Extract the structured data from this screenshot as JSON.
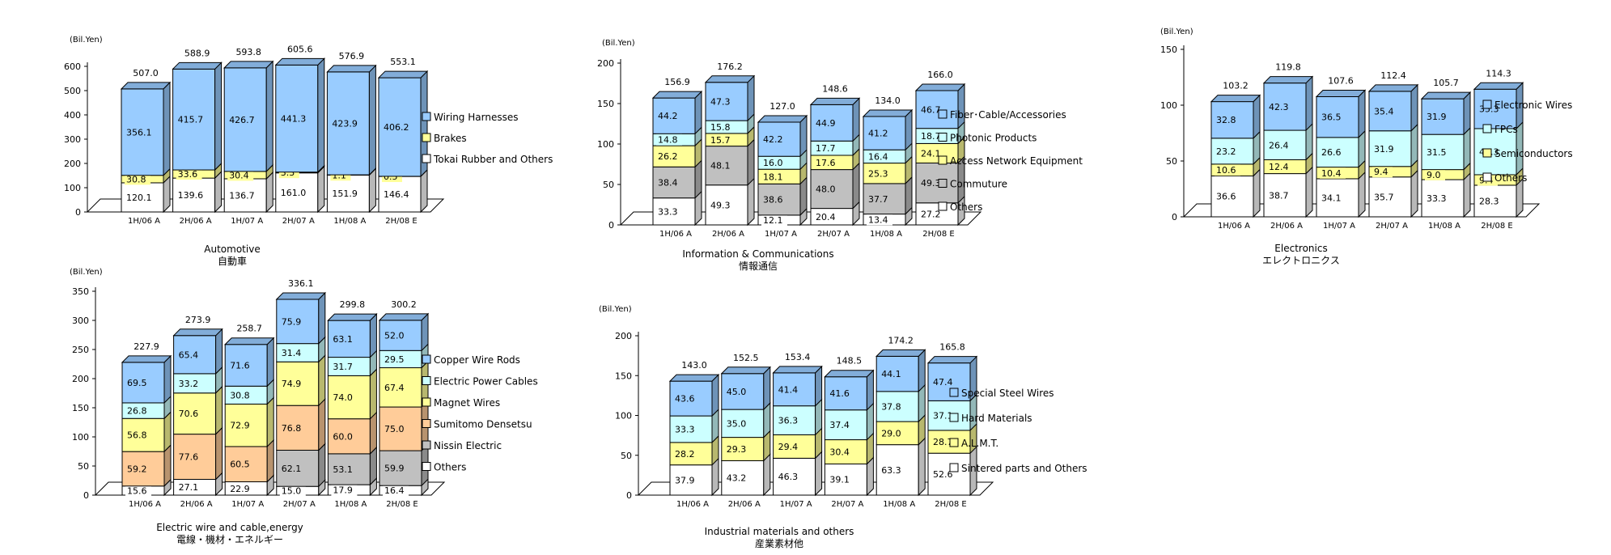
{
  "chart_data": [
    {
      "id": "automotive",
      "type": "bar",
      "stacked": true,
      "unit_label": "(Bil.Yen)",
      "title": "Automotive",
      "subtitle": "自動車",
      "categories": [
        "1H/06 A",
        "2H/06 A",
        "1H/07 A",
        "2H/07 A",
        "1H/08 A",
        "2H/08 E"
      ],
      "ylim": [
        0,
        600
      ],
      "yticks": [
        0,
        100,
        200,
        300,
        400,
        500,
        600
      ],
      "totals": [
        "507.0",
        "588.9",
        "593.8",
        "605.6",
        "576.9",
        "553.1"
      ],
      "series": [
        {
          "name": "Tokai Rubber and Others",
          "color": "#ffffff",
          "values": [
            120.1,
            139.6,
            136.7,
            161.0,
            151.9,
            146.4
          ],
          "labels": [
            "120.1",
            "139.6",
            "136.7",
            "161.0",
            "151.9",
            "146.4"
          ]
        },
        {
          "name": "Brakes",
          "color": "#ffff99",
          "values": [
            30.8,
            33.6,
            30.4,
            3.3,
            1.1,
            0.5
          ],
          "labels": [
            "30.8",
            "33.6",
            "30.4",
            "3.3",
            "1.1",
            "0.5"
          ]
        },
        {
          "name": "Wiring Harnesses",
          "color": "#99ccff",
          "values": [
            356.1,
            415.7,
            426.7,
            441.3,
            423.9,
            406.2
          ],
          "labels": [
            "356.1",
            "415.7",
            "426.7",
            "441.3",
            "423.9",
            "406.2"
          ]
        }
      ]
    },
    {
      "id": "info-comm",
      "type": "bar",
      "stacked": true,
      "unit_label": "(Bil.Yen)",
      "title": "Information & Communications",
      "subtitle": "情報通信",
      "categories": [
        "1H/06 A",
        "2H/06 A",
        "1H/07 A",
        "2H/07 A",
        "1H/08 A",
        "2H/08 E"
      ],
      "ylim": [
        0,
        200
      ],
      "yticks": [
        0,
        50,
        100,
        150,
        200
      ],
      "totals": [
        "156.9",
        "176.2",
        "127.0",
        "148.6",
        "134.0",
        "166.0"
      ],
      "series": [
        {
          "name": "Others",
          "color": "#ffffff",
          "values": [
            33.3,
            49.3,
            12.1,
            20.4,
            13.4,
            27.2
          ],
          "labels": [
            "33.3",
            "49.3",
            "12.1",
            "20.4",
            "13.4",
            "27.2"
          ]
        },
        {
          "name": "Commuture",
          "color": "#c0c0c0",
          "values": [
            38.4,
            48.1,
            38.6,
            48.0,
            37.7,
            49.3
          ],
          "labels": [
            "38.4",
            "48.1",
            "38.6",
            "48.0",
            "37.7",
            "49.3"
          ]
        },
        {
          "name": "Access Network Equipment",
          "color": "#ffff99",
          "values": [
            26.2,
            15.7,
            18.1,
            17.6,
            25.3,
            24.1
          ],
          "labels": [
            "26.2",
            "15.7",
            "18.1",
            "17.6",
            "25.3",
            "24.1"
          ]
        },
        {
          "name": "Photonic Products",
          "color": "#ccffff",
          "values": [
            14.8,
            15.8,
            16.0,
            17.7,
            16.4,
            18.7
          ],
          "labels": [
            "14.8",
            "15.8",
            "16.0",
            "17.7",
            "16.4",
            "18.7"
          ]
        },
        {
          "name": "Fiber･Cable/Accessories",
          "color": "#99ccff",
          "values": [
            44.2,
            47.3,
            42.2,
            44.9,
            41.2,
            46.7
          ],
          "labels": [
            "44.2",
            "47.3",
            "42.2",
            "44.9",
            "41.2",
            "46.7"
          ]
        }
      ]
    },
    {
      "id": "electronics",
      "type": "bar",
      "stacked": true,
      "unit_label": "(Bil.Yen)",
      "title": "Electronics",
      "subtitle": "エレクトロニクス",
      "categories": [
        "1H/06 A",
        "2H/06 A",
        "1H/07 A",
        "2H/07 A",
        "1H/08 A",
        "2H/08 E"
      ],
      "ylim": [
        0,
        150
      ],
      "yticks": [
        0,
        50,
        100,
        150
      ],
      "totals": [
        "103.2",
        "119.8",
        "107.6",
        "112.4",
        "105.7",
        "114.3"
      ],
      "series": [
        {
          "name": "Others",
          "color": "#ffffff",
          "values": [
            36.6,
            38.7,
            34.1,
            35.7,
            33.3,
            28.3
          ],
          "labels": [
            "36.6",
            "38.7",
            "34.1",
            "35.7",
            "33.3",
            "28.3"
          ]
        },
        {
          "name": "Semiconductors",
          "color": "#ffff99",
          "values": [
            10.6,
            12.4,
            10.4,
            9.4,
            9.0,
            9.4
          ],
          "labels": [
            "10.6",
            "12.4",
            "10.4",
            "9.4",
            "9.0",
            "9.4"
          ]
        },
        {
          "name": "FPCs",
          "color": "#ccffff",
          "values": [
            23.2,
            26.4,
            26.6,
            31.9,
            31.5,
            41.3
          ],
          "labels": [
            "23.2",
            "26.4",
            "26.6",
            "31.9",
            "31.5",
            "41.3"
          ]
        },
        {
          "name": "Electronic Wires",
          "color": "#99ccff",
          "values": [
            32.8,
            42.3,
            36.5,
            35.4,
            31.9,
            35.3
          ],
          "labels": [
            "32.8",
            "42.3",
            "36.5",
            "35.4",
            "31.9",
            "35.3"
          ]
        }
      ]
    },
    {
      "id": "electric-wire",
      "type": "bar",
      "stacked": true,
      "unit_label": "(Bil.Yen)",
      "title": "Electric wire and cable,energy",
      "subtitle": "電線・機材・エネルギー",
      "categories": [
        "1H/06 A",
        "2H/06 A",
        "1H/07 A",
        "2H/07 A",
        "1H/08 A",
        "2H/08 E"
      ],
      "ylim": [
        0,
        350
      ],
      "yticks": [
        0,
        50,
        100,
        150,
        200,
        250,
        300,
        350
      ],
      "totals": [
        "227.9",
        "273.9",
        "258.7",
        "336.1",
        "299.8",
        "300.2"
      ],
      "series": [
        {
          "name": "Others",
          "color": "#ffffff",
          "values": [
            15.6,
            27.1,
            22.9,
            15.0,
            17.9,
            16.4
          ],
          "labels": [
            "15.6",
            "27.1",
            "22.9",
            "15.0",
            "17.9",
            "16.4"
          ]
        },
        {
          "name": "Nissin Electric",
          "color": "#c0c0c0",
          "values": [
            0,
            0,
            0,
            62.1,
            53.1,
            59.9
          ],
          "labels": [
            "",
            "",
            "",
            "62.1",
            "53.1",
            "59.9"
          ]
        },
        {
          "name": "Sumitomo Densetsu",
          "color": "#ffcc99",
          "values": [
            59.2,
            77.6,
            60.5,
            76.8,
            60.0,
            75.0
          ],
          "labels": [
            "59.2",
            "77.6",
            "60.5",
            "76.8",
            "60.0",
            "75.0"
          ]
        },
        {
          "name": "Magnet Wires",
          "color": "#ffff99",
          "values": [
            56.8,
            70.6,
            72.9,
            74.9,
            74.0,
            67.4
          ],
          "labels": [
            "56.8",
            "70.6",
            "72.9",
            "74.9",
            "74.0",
            "67.4"
          ]
        },
        {
          "name": "Electric Power Cables",
          "color": "#ccffff",
          "values": [
            26.8,
            33.2,
            30.8,
            31.4,
            31.7,
            29.5
          ],
          "labels": [
            "26.8",
            "33.2",
            "30.8",
            "31.4",
            "31.7",
            "29.5"
          ]
        },
        {
          "name": "Copper Wire Rods",
          "color": "#99ccff",
          "values": [
            69.5,
            65.4,
            71.6,
            75.9,
            63.1,
            52.0
          ],
          "labels": [
            "69.5",
            "65.4",
            "71.6",
            "75.9",
            "63.1",
            "52.0"
          ]
        }
      ]
    },
    {
      "id": "industrial",
      "type": "bar",
      "stacked": true,
      "unit_label": "(Bil.Yen)",
      "title": "Industrial materials and others",
      "subtitle": "産業素材他",
      "categories": [
        "1H/06 A",
        "2H/06 A",
        "1H/07 A",
        "2H/07 A",
        "1H/08 A",
        "2H/08 E"
      ],
      "ylim": [
        0,
        200
      ],
      "yticks": [
        0,
        50,
        100,
        150,
        200
      ],
      "totals": [
        "143.0",
        "152.5",
        "153.4",
        "148.5",
        "174.2",
        "165.8"
      ],
      "series": [
        {
          "name": "Sintered parts and Others",
          "color": "#ffffff",
          "values": [
            37.9,
            43.2,
            46.3,
            39.1,
            63.3,
            52.6
          ],
          "labels": [
            "37.9",
            "43.2",
            "46.3",
            "39.1",
            "63.3",
            "52.6"
          ]
        },
        {
          "name": "A.L.M.T.",
          "color": "#ffff99",
          "values": [
            28.2,
            29.3,
            29.4,
            30.4,
            29.0,
            28.7
          ],
          "labels": [
            "28.2",
            "29.3",
            "29.4",
            "30.4",
            "29.0",
            "28.7"
          ]
        },
        {
          "name": "Hard Materials",
          "color": "#ccffff",
          "values": [
            33.3,
            35.0,
            36.3,
            37.4,
            37.8,
            37.1
          ],
          "labels": [
            "33.3",
            "35.0",
            "36.3",
            "37.4",
            "37.8",
            "37.1"
          ]
        },
        {
          "name": "Special Steel Wires",
          "color": "#99ccff",
          "values": [
            43.6,
            45.0,
            41.4,
            41.6,
            44.1,
            47.4
          ],
          "labels": [
            "43.6",
            "45.0",
            "41.4",
            "41.6",
            "44.1",
            "47.4"
          ]
        }
      ]
    }
  ]
}
